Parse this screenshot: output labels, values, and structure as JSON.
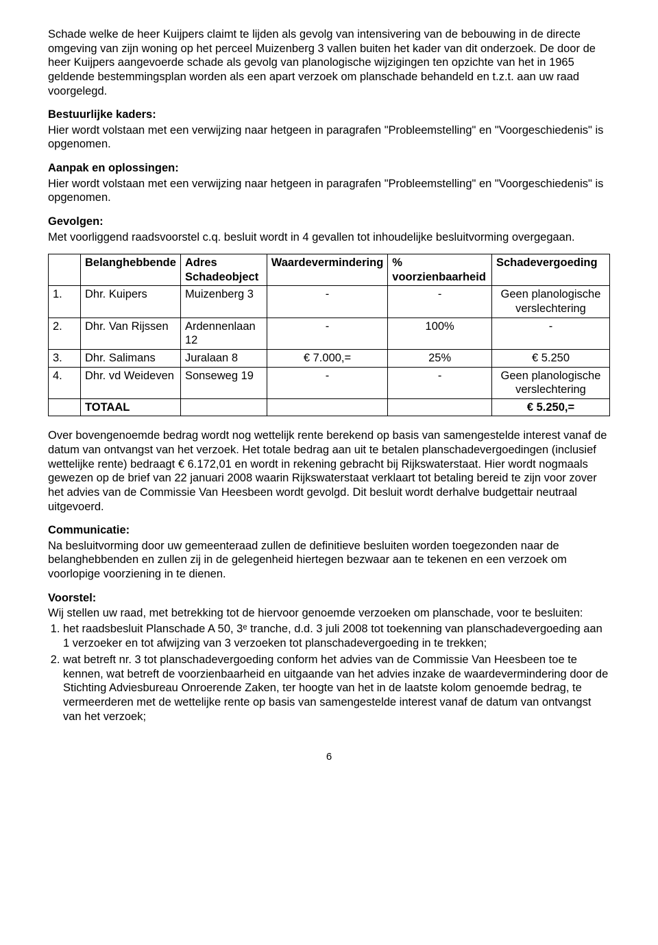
{
  "para_intro": "Schade welke de heer Kuijpers claimt te lijden als gevolg van intensivering van de bebouwing in de directe omgeving van zijn woning op het perceel Muizenberg 3 vallen buiten het kader van dit onderzoek. De door de heer Kuijpers aangevoerde schade als gevolg van planologische wijzigingen ten opzichte van het in 1965 geldende bestemmingsplan worden als een apart verzoek om planschade behandeld en t.z.t. aan uw raad voorgelegd.",
  "h_bestuurlijke": "Bestuurlijke kaders:",
  "p_bestuurlijke": "Hier wordt volstaan met een verwijzing naar hetgeen in paragrafen \"Probleemstelling\" en \"Voorgeschiedenis\" is opgenomen.",
  "h_aanpak": "Aanpak en oplossingen:",
  "p_aanpak": "Hier wordt volstaan met een verwijzing naar hetgeen in paragrafen \"Probleemstelling\" en \"Voorgeschiedenis\" is opgenomen.",
  "h_gevolgen": "Gevolgen:",
  "p_gevolgen": "Met voorliggend raadsvoorstel c.q. besluit wordt in 4 gevallen tot inhoudelijke besluitvorming overgegaan.",
  "table": {
    "headers": [
      "",
      "Belanghebbende",
      "Adres Schadeobject",
      "Waardevermindering",
      "% voorzienbaarheid",
      "Schadevergoeding"
    ],
    "rows": [
      [
        "1.",
        "Dhr. Kuipers",
        "Muizenberg 3",
        "-",
        "-",
        "Geen planologische verslechtering"
      ],
      [
        "2.",
        "Dhr. Van Rijssen",
        "Ardennenlaan 12",
        "-",
        "100%",
        "-"
      ],
      [
        "3.",
        "Dhr. Salimans",
        "Juralaan 8",
        "€ 7.000,=",
        "25%",
        "€ 5.250"
      ],
      [
        "4.",
        "Dhr. vd Weideven",
        "Sonseweg 19",
        "-",
        "-",
        "Geen planologische verslechtering"
      ]
    ],
    "total_label": "TOTAAL",
    "total_value": "€ 5.250,="
  },
  "p_over": "Over bovengenoemde bedrag wordt nog wettelijk rente berekend op basis van samengestelde interest vanaf de datum van ontvangst van het verzoek. Het totale bedrag aan uit te betalen planschadevergoedingen (inclusief wettelijke rente) bedraagt € 6.172,01 en wordt in rekening gebracht bij Rijkswaterstaat. Hier wordt nogmaals gewezen op de brief van 22 januari 2008  waarin Rijkswaterstaat verklaart tot betaling bereid te zijn voor zover het advies van de Commissie Van Heesbeen wordt gevolgd. Dit besluit wordt derhalve budgettair neutraal uitgevoerd.",
  "h_comm": "Communicatie:",
  "p_comm": "Na besluitvorming door uw gemeenteraad zullen de definitieve besluiten worden toegezonden naar de belanghebbenden en zullen zij in de gelegenheid hiertegen bezwaar aan te tekenen en een verzoek om voorlopige voorziening in te dienen.",
  "h_voorstel": "Voorstel:",
  "p_voorstel_intro": "Wij stellen uw raad, met betrekking tot de hiervoor genoemde verzoeken om planschade, voor te besluiten:",
  "besluit": [
    "het raadsbesluit Planschade A 50, 3ᵉ tranche, d.d. 3 juli 2008 tot toekenning van planschadevergoeding aan 1 verzoeker en tot afwijzing van 3 verzoeken tot planschadevergoeding in te trekken;",
    "wat betreft nr. 3 tot planschadevergoeding conform het advies van de Commissie Van Heesbeen toe te kennen, wat betreft de voorzienbaarheid en uitgaande van het advies inzake de waardevermindering door de Stichting Adviesbureau Onroerende Zaken, ter hoogte van het in de laatste kolom genoemde bedrag, te vermeerderen met de wettelijke rente op basis van samengestelde interest vanaf de datum van ontvangst van het verzoek;"
  ],
  "page_number": "6"
}
